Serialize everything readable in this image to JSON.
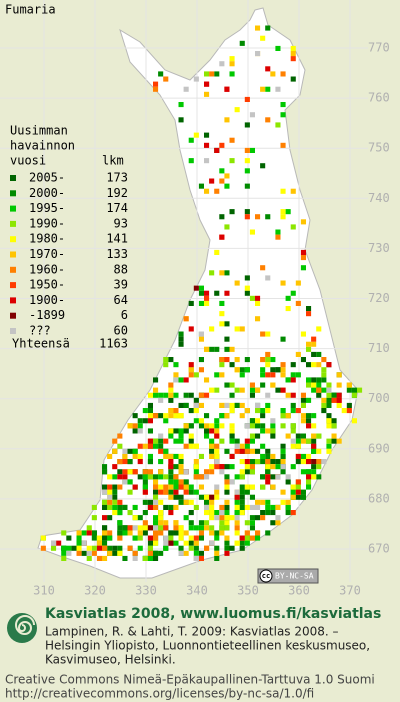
{
  "title": "Fumaria",
  "legend": {
    "header": [
      "Uusimman",
      "havainnon",
      "vuosi"
    ],
    "count_header": "lkm",
    "rows": [
      {
        "label": "2005-",
        "count": 173,
        "color": "#006400"
      },
      {
        "label": "2000-",
        "count": 192,
        "color": "#008a00"
      },
      {
        "label": "1995-",
        "count": 174,
        "color": "#00c800"
      },
      {
        "label": "1990-",
        "count": 93,
        "color": "#8ce600"
      },
      {
        "label": "1980-",
        "count": 141,
        "color": "#ffff00"
      },
      {
        "label": "1970-",
        "count": 133,
        "color": "#ffc400"
      },
      {
        "label": "1960-",
        "count": 88,
        "color": "#ff8000"
      },
      {
        "label": "1950-",
        "count": 39,
        "color": "#ff3c00"
      },
      {
        "label": "1900-",
        "count": 64,
        "color": "#dc0000"
      },
      {
        "label": "-1899",
        "count": 6,
        "color": "#800000"
      },
      {
        "label": "???",
        "count": 60,
        "color": "#c4c4c4"
      }
    ],
    "total_label": "Yhteensä",
    "total": 1163
  },
  "map": {
    "yticks": [
      770,
      760,
      750,
      740,
      730,
      720,
      710,
      700,
      690,
      680,
      670
    ],
    "xticks": [
      310,
      320,
      330,
      340,
      350,
      360,
      370
    ]
  },
  "badge": {
    "cc": "cc",
    "license": "BY-NC-SA"
  },
  "footer": {
    "title": "Kasviatlas 2008, www.luomus.fi/kasviatlas",
    "citation": [
      "Lampinen, R. & Lahti, T. 2009: Kasviatlas 2008. –",
      "Helsingin Yliopisto, Luonnontieteellinen keskusmuseo,",
      "Kasvimuseo, Helsinki."
    ],
    "license": "Creative Commons Nimeä-Epäkaupallinen-Tarttuva 1.0 Suomi",
    "url": "http://creativecommons.org/licenses/by-nc-sa/1.0/fi"
  }
}
